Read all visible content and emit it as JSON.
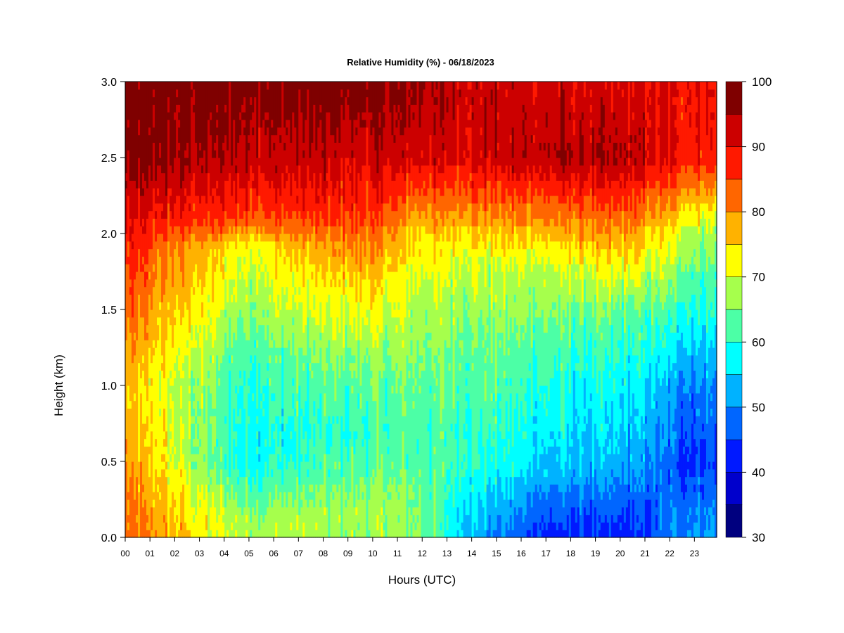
{
  "chart_data": {
    "type": "heatmap",
    "title": "Relative Humidity (%) - 06/18/2023",
    "xlabel": "Hours (UTC)",
    "ylabel": "Height (km)",
    "x_ticks": [
      "00",
      "01",
      "02",
      "03",
      "04",
      "05",
      "06",
      "07",
      "08",
      "09",
      "10",
      "11",
      "12",
      "13",
      "14",
      "15",
      "16",
      "17",
      "18",
      "19",
      "20",
      "21",
      "22",
      "23"
    ],
    "x_range": [
      0,
      23.9
    ],
    "y_ticks": [
      "0.0",
      "0.5",
      "1.0",
      "1.5",
      "2.0",
      "2.5",
      "3.0"
    ],
    "y_range": [
      0,
      3
    ],
    "colorbar": {
      "range": [
        30,
        100
      ],
      "step": 5,
      "tick_labels": [
        "30",
        "40",
        "50",
        "60",
        "70",
        "80",
        "90",
        "100"
      ],
      "colors": [
        "#00007f",
        "#0000cc",
        "#0019ff",
        "#0066ff",
        "#00b2ff",
        "#00ffff",
        "#4cffa6",
        "#a6ff4c",
        "#ffff00",
        "#ffb200",
        "#ff6600",
        "#ff1900",
        "#cc0000",
        "#7f0000"
      ]
    },
    "field_summary": [
      {
        "time_range_h": [
          0,
          0.3
        ],
        "rh_by_height": {
          "0.1": 82,
          "1.0": 75,
          "1.5": 82,
          "2.0": 88,
          "2.5": 97,
          "3.0": 98
        }
      },
      {
        "time_range_h": [
          0.5,
          9
        ],
        "rh_by_height": {
          "0.1": 68,
          "0.5": 58,
          "1.0": 60,
          "1.5": 67,
          "1.9": 72,
          "2.1": 85,
          "2.5": 94,
          "3.0": 98
        }
      },
      {
        "time_range_h": [
          9,
          10.5
        ],
        "rh_by_height": {
          "0.2": 67,
          "0.7": 60,
          "1.2": 66,
          "1.7": 76,
          "2.2": 88,
          "3.0": 98
        }
      },
      {
        "time_range_h": [
          10.5,
          13
        ],
        "rh_by_height": {
          "0.1": 66,
          "0.7": 62,
          "1.5": 68,
          "2.0": 75,
          "2.5": 92,
          "3.0": 96
        }
      },
      {
        "time_range_h": [
          13,
          16
        ],
        "rh_by_height": {
          "0.0": 50,
          "0.5": 60,
          "1.2": 64,
          "1.8": 70,
          "2.5": 92,
          "3.0": 93
        }
      },
      {
        "time_range_h": [
          16,
          19
        ],
        "rh_by_height": {
          "0.0": 42,
          "0.5": 54,
          "1.2": 61,
          "1.8": 70,
          "2.5": 95,
          "3.0": 92
        }
      },
      {
        "time_range_h": [
          19,
          22
        ],
        "rh_by_height": {
          "0.0": 42,
          "0.5": 52,
          "1.0": 56,
          "1.5": 63,
          "2.1": 82,
          "2.5": 94,
          "3.0": 90
        }
      },
      {
        "time_range_h": [
          22,
          23.9
        ],
        "rh_by_height": {
          "0.0": 52,
          "0.5": 44,
          "1.0": 50,
          "1.5": 60,
          "2.0": 68,
          "2.5": 88,
          "3.0": 90
        }
      }
    ],
    "grid": false,
    "legend": "colorbar-right"
  }
}
